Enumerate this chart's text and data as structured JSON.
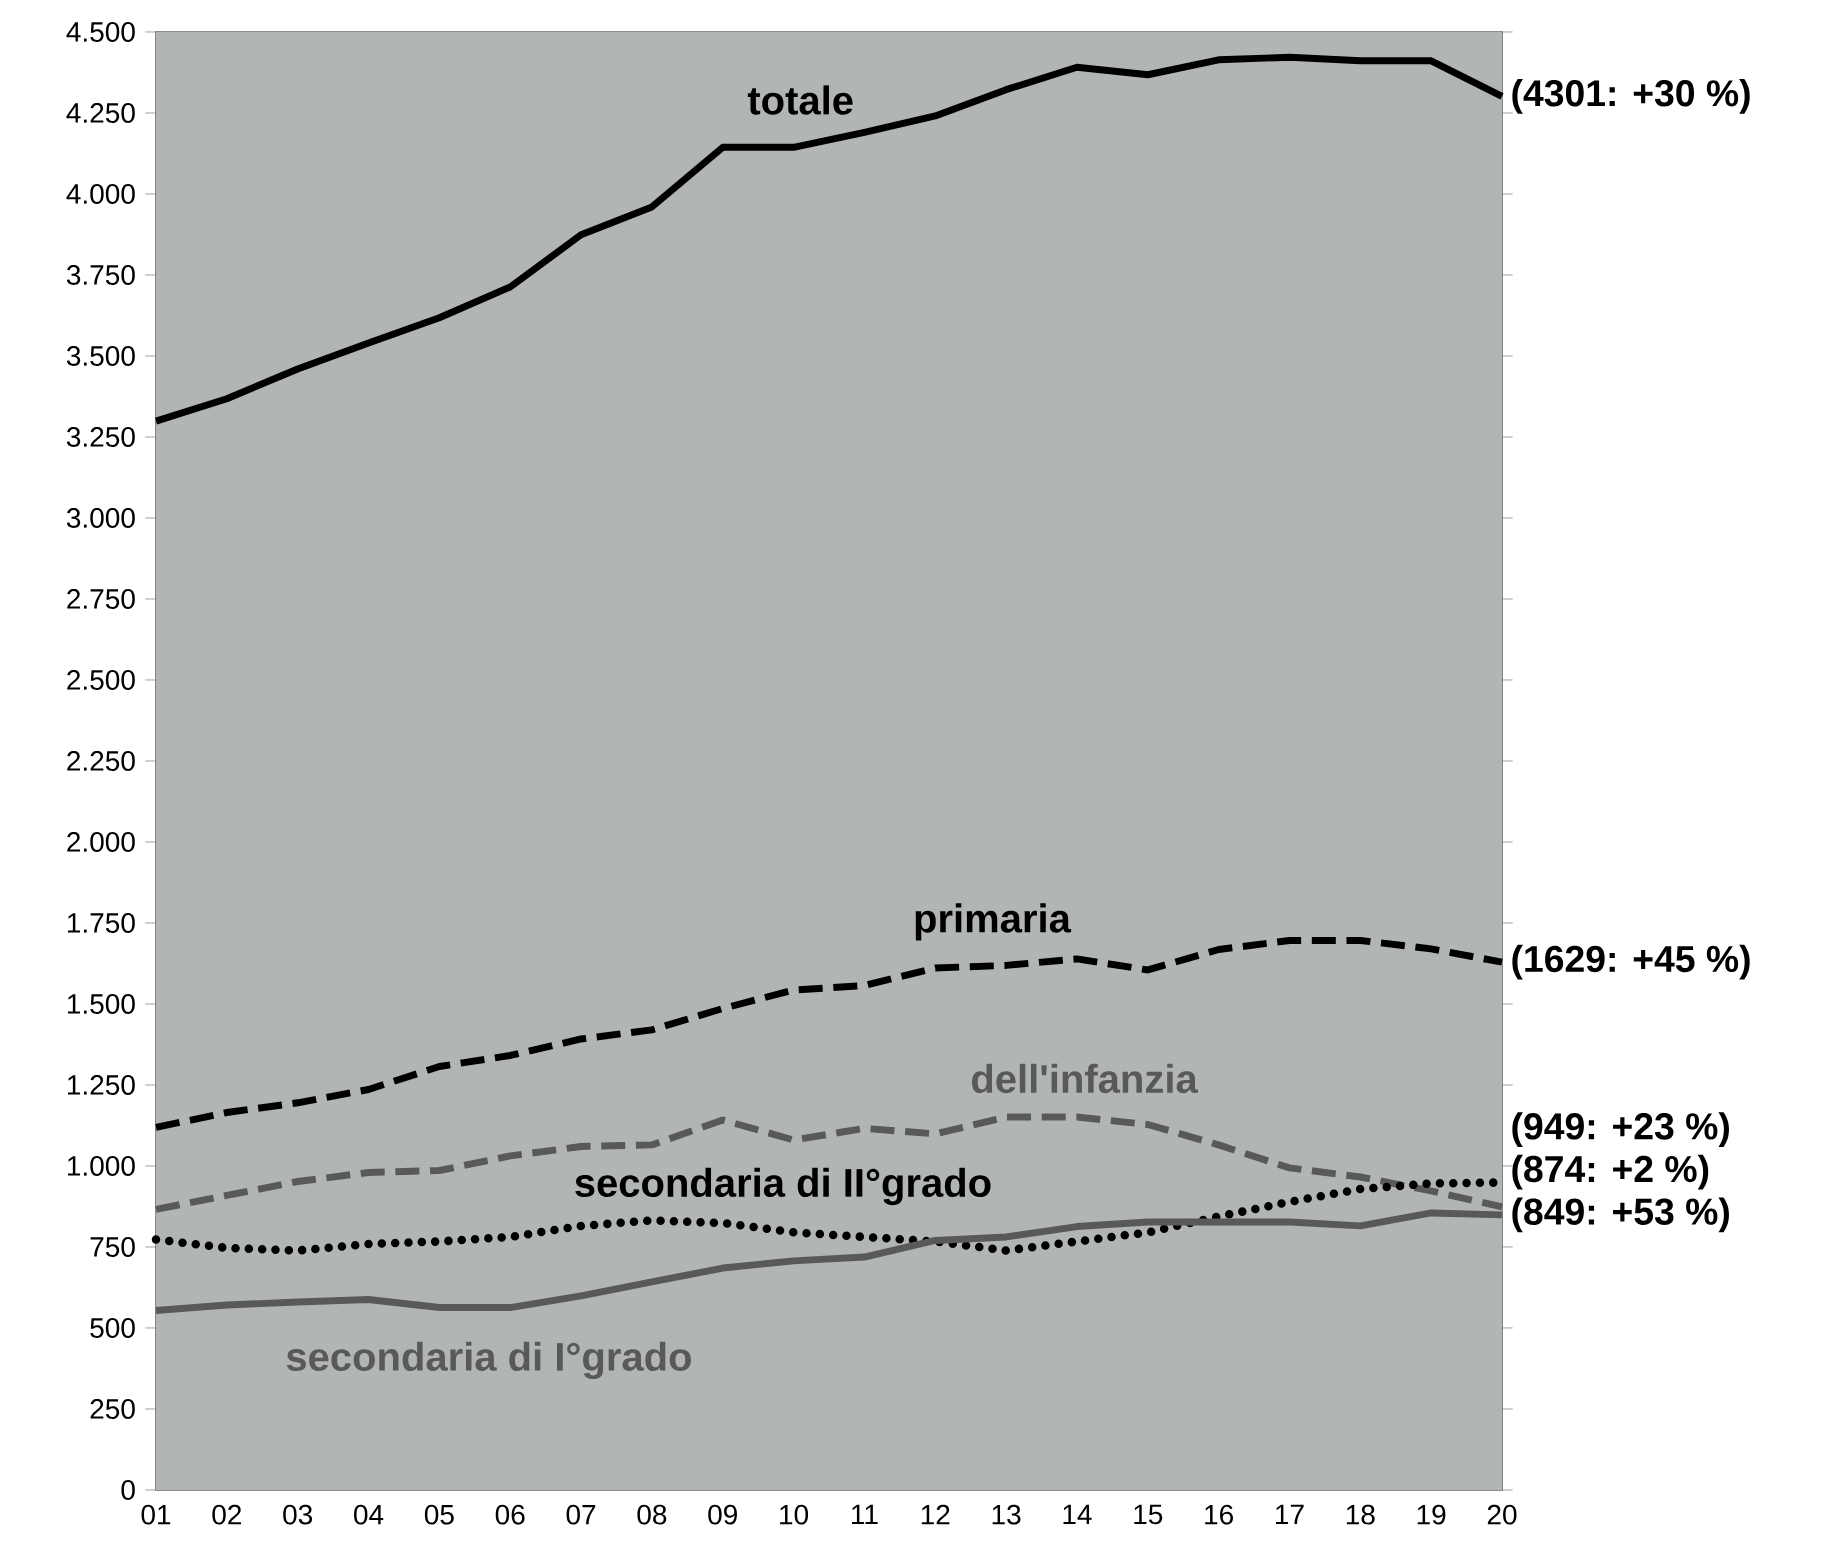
{
  "chart_data": {
    "type": "line",
    "categories": [
      "01",
      "02",
      "03",
      "04",
      "05",
      "06",
      "07",
      "08",
      "09",
      "10",
      "11",
      "12",
      "13",
      "14",
      "15",
      "16",
      "17",
      "18",
      "19",
      "20"
    ],
    "ylim": [
      0,
      4500
    ],
    "yticks": [
      {
        "value": 0,
        "label": "0"
      },
      {
        "value": 250,
        "label": "250"
      },
      {
        "value": 500,
        "label": "500"
      },
      {
        "value": 750,
        "label": "750"
      },
      {
        "value": 1000,
        "label": "1.000"
      },
      {
        "value": 1250,
        "label": "1.250"
      },
      {
        "value": 1500,
        "label": "1.500"
      },
      {
        "value": 1750,
        "label": "1.750"
      },
      {
        "value": 2000,
        "label": "2.000"
      },
      {
        "value": 2250,
        "label": "2.250"
      },
      {
        "value": 2500,
        "label": "2.500"
      },
      {
        "value": 2750,
        "label": "2.750"
      },
      {
        "value": 3000,
        "label": "3.000"
      },
      {
        "value": 3250,
        "label": "3.250"
      },
      {
        "value": 3500,
        "label": "3.500"
      },
      {
        "value": 3750,
        "label": "3.750"
      },
      {
        "value": 4000,
        "label": "4.000"
      },
      {
        "value": 4250,
        "label": "4.250"
      },
      {
        "value": 4500,
        "label": "4.500"
      }
    ],
    "series": [
      {
        "name": "totale",
        "color": "#000000",
        "line_style": "solid",
        "values": [
          3299,
          3368,
          3460,
          3540,
          3618,
          3713,
          3874,
          3960,
          4144,
          4144,
          4190,
          4241,
          4322,
          4391,
          4368,
          4414,
          4422,
          4411,
          4411,
          4301
        ]
      },
      {
        "name": "primaria",
        "color": "#000000",
        "line_style": "dashed",
        "values": [
          1119,
          1165,
          1195,
          1236,
          1307,
          1341,
          1392,
          1420,
          1486,
          1543,
          1557,
          1611,
          1619,
          1639,
          1605,
          1668,
          1696,
          1696,
          1670,
          1629
        ]
      },
      {
        "name": "dell'infanzia",
        "color": "#595959",
        "line_style": "dashed",
        "values": [
          866,
          909,
          952,
          980,
          986,
          1031,
          1060,
          1065,
          1142,
          1080,
          1116,
          1099,
          1151,
          1151,
          1128,
          1065,
          994,
          966,
          923,
          874
        ]
      },
      {
        "name": "secondaria di II°grado",
        "color": "#000000",
        "line_style": "dotted",
        "values": [
          773,
          747,
          739,
          759,
          767,
          781,
          815,
          832,
          824,
          795,
          781,
          767,
          739,
          767,
          795,
          844,
          889,
          929,
          946,
          949
        ]
      },
      {
        "name": "secondaria di I°grado",
        "color": "#595959",
        "line_style": "solid",
        "values": [
          554,
          571,
          580,
          588,
          563,
          563,
          599,
          642,
          685,
          707,
          719,
          770,
          781,
          813,
          827,
          827,
          827,
          815,
          855,
          849
        ]
      }
    ],
    "annotations": [
      {
        "text": "(4301: +30 %)",
        "x": "20",
        "y": 4301
      },
      {
        "text": "(1629: +45 %)",
        "x": "20",
        "y": 1629
      },
      {
        "text": "(949: +23 %)",
        "x": "20",
        "y": 949
      },
      {
        "text": "(874:   +2 %)",
        "x": "20",
        "y": 874
      },
      {
        "text": "(849: +53 %)",
        "x": "20",
        "y": 849
      }
    ]
  }
}
